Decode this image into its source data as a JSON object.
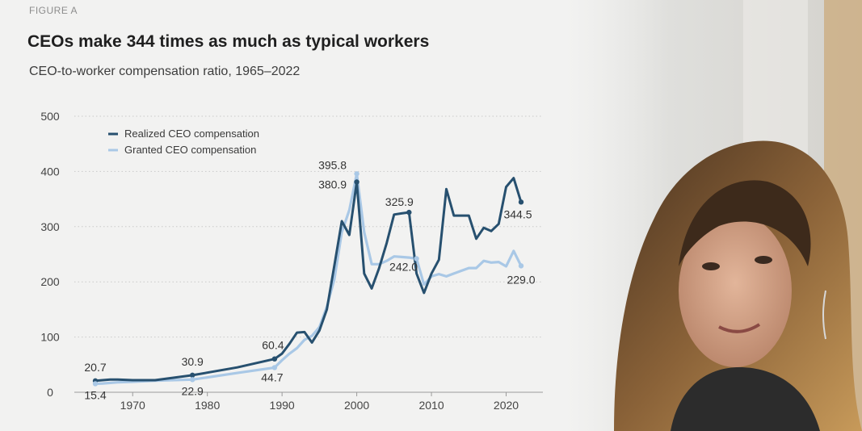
{
  "figure_label": "FIGURE A",
  "title": "CEOs make 344 times as much as typical workers",
  "subtitle": "CEO-to-worker compensation ratio, 1965–2022",
  "colors": {
    "realized": "#27506f",
    "granted": "#a9c8e6",
    "grid": "#c9c9c9",
    "tick_text": "#444444",
    "label_text": "#333333"
  },
  "chart_data": {
    "type": "line",
    "title": "CEOs make 344 times as much as typical workers",
    "subtitle": "CEO-to-worker compensation ratio, 1965–2022",
    "xlim": [
      1965,
      2022
    ],
    "ylim": [
      0,
      500
    ],
    "x_ticks": [
      1970,
      1980,
      1990,
      2000,
      2010,
      2020
    ],
    "y_ticks": [
      0,
      100,
      200,
      300,
      400,
      500
    ],
    "grid": "horizontal dotted",
    "legend_position": "top-left",
    "series": [
      {
        "name": "Realized CEO compensation",
        "points": [
          [
            1965,
            20.7
          ],
          [
            1966,
            22
          ],
          [
            1967,
            23
          ],
          [
            1968,
            23
          ],
          [
            1970,
            22
          ],
          [
            1973,
            22
          ],
          [
            1978,
            30.9
          ],
          [
            1984,
            45
          ],
          [
            1989,
            60.4
          ],
          [
            1990,
            70
          ],
          [
            1991,
            88
          ],
          [
            1992,
            108
          ],
          [
            1993,
            109
          ],
          [
            1994,
            90
          ],
          [
            1995,
            112
          ],
          [
            1996,
            150
          ],
          [
            1997,
            230
          ],
          [
            1998,
            310
          ],
          [
            1999,
            285
          ],
          [
            2000,
            380.9
          ],
          [
            2001,
            215
          ],
          [
            2002,
            188
          ],
          [
            2003,
            225
          ],
          [
            2004,
            270
          ],
          [
            2005,
            322
          ],
          [
            2006,
            324
          ],
          [
            2007,
            325.9
          ],
          [
            2008,
            215
          ],
          [
            2009,
            180
          ],
          [
            2010,
            215
          ],
          [
            2011,
            240
          ],
          [
            2012,
            368
          ],
          [
            2013,
            320
          ],
          [
            2014,
            320
          ],
          [
            2015,
            320
          ],
          [
            2016,
            278
          ],
          [
            2017,
            298
          ],
          [
            2018,
            292
          ],
          [
            2019,
            305
          ],
          [
            2020,
            372
          ],
          [
            2021,
            388
          ],
          [
            2022,
            344.5
          ]
        ]
      },
      {
        "name": "Granted CEO compensation",
        "points": [
          [
            1965,
            15.4
          ],
          [
            1966,
            16
          ],
          [
            1968,
            18
          ],
          [
            1970,
            19
          ],
          [
            1973,
            21
          ],
          [
            1978,
            22.9
          ],
          [
            1984,
            35
          ],
          [
            1989,
            44.7
          ],
          [
            1990,
            58
          ],
          [
            1991,
            70
          ],
          [
            1992,
            80
          ],
          [
            1993,
            95
          ],
          [
            1994,
            102
          ],
          [
            1995,
            118
          ],
          [
            1996,
            155
          ],
          [
            1997,
            205
          ],
          [
            1998,
            290
          ],
          [
            1999,
            330
          ],
          [
            2000,
            395.8
          ],
          [
            2001,
            290
          ],
          [
            2002,
            232
          ],
          [
            2003,
            232
          ],
          [
            2004,
            238
          ],
          [
            2005,
            246
          ],
          [
            2006,
            245
          ],
          [
            2007,
            244
          ],
          [
            2008,
            242.0
          ],
          [
            2009,
            195
          ],
          [
            2010,
            210
          ],
          [
            2011,
            214
          ],
          [
            2012,
            210
          ],
          [
            2013,
            215
          ],
          [
            2014,
            220
          ],
          [
            2015,
            225
          ],
          [
            2016,
            225
          ],
          [
            2017,
            238
          ],
          [
            2018,
            235
          ],
          [
            2019,
            236
          ],
          [
            2020,
            228
          ],
          [
            2021,
            256
          ],
          [
            2022,
            229.0
          ]
        ]
      }
    ],
    "annotations": [
      {
        "text": "20.7",
        "x": 1965,
        "y": 20.7,
        "series": "Realized CEO compensation"
      },
      {
        "text": "15.4",
        "x": 1965,
        "y": 15.4,
        "series": "Granted CEO compensation"
      },
      {
        "text": "30.9",
        "x": 1978,
        "y": 30.9,
        "series": "Realized CEO compensation"
      },
      {
        "text": "22.9",
        "x": 1978,
        "y": 22.9,
        "series": "Granted CEO compensation"
      },
      {
        "text": "60.4",
        "x": 1989,
        "y": 60.4,
        "series": "Realized CEO compensation"
      },
      {
        "text": "44.7",
        "x": 1989,
        "y": 44.7,
        "series": "Granted CEO compensation"
      },
      {
        "text": "395.8",
        "x": 2000,
        "y": 395.8,
        "series": "Granted CEO compensation"
      },
      {
        "text": "380.9",
        "x": 2000,
        "y": 380.9,
        "series": "Realized CEO compensation"
      },
      {
        "text": "325.9",
        "x": 2007,
        "y": 325.9,
        "series": "Realized CEO compensation"
      },
      {
        "text": "242.0",
        "x": 2008,
        "y": 242.0,
        "series": "Granted CEO compensation"
      },
      {
        "text": "344.5",
        "x": 2022,
        "y": 344.5,
        "series": "Realized CEO compensation"
      },
      {
        "text": "229.0",
        "x": 2022,
        "y": 229.0,
        "series": "Granted CEO compensation"
      }
    ]
  }
}
